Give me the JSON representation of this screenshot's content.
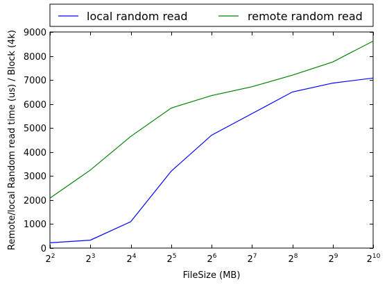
{
  "chart_data": {
    "type": "line",
    "title": "",
    "xlabel": "FileSize (MB)",
    "ylabel": "Remote/local Random read time (us) / Block (4k)",
    "x_scale": "log2",
    "x": [
      4,
      8,
      16,
      32,
      64,
      128,
      256,
      512,
      1024
    ],
    "xtick_labels": [
      {
        "base": "2",
        "exp": "2"
      },
      {
        "base": "2",
        "exp": "3"
      },
      {
        "base": "2",
        "exp": "4"
      },
      {
        "base": "2",
        "exp": "5"
      },
      {
        "base": "2",
        "exp": "6"
      },
      {
        "base": "2",
        "exp": "7"
      },
      {
        "base": "2",
        "exp": "8"
      },
      {
        "base": "2",
        "exp": "9"
      },
      {
        "base": "2",
        "exp": "10"
      }
    ],
    "ylim": [
      0,
      9000
    ],
    "yticks": [
      0,
      1000,
      2000,
      3000,
      4000,
      5000,
      6000,
      7000,
      8000,
      9000
    ],
    "ytick_labels": [
      "0",
      "1000",
      "2000",
      "3000",
      "4000",
      "5000",
      "6000",
      "7000",
      "8000",
      "9000"
    ],
    "grid": false,
    "legend_position": "top, above plot",
    "series": [
      {
        "name": "local random read",
        "color": "#0000ff",
        "values": [
          220,
          330,
          1100,
          3200,
          4700,
          5600,
          6500,
          6870,
          7080
        ]
      },
      {
        "name": "remote random read",
        "color": "#008000",
        "values": [
          2080,
          3250,
          4650,
          5830,
          6350,
          6720,
          7200,
          7750,
          8620
        ]
      }
    ]
  }
}
